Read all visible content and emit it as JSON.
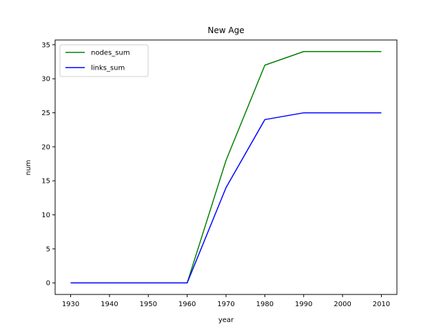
{
  "chart_data": {
    "type": "line",
    "title": "New Age",
    "xlabel": "year",
    "ylabel": "num",
    "x": [
      1930,
      1940,
      1950,
      1960,
      1970,
      1980,
      1990,
      2000,
      2010
    ],
    "xticks": [
      "1930",
      "1940",
      "1950",
      "1960",
      "1970",
      "1980",
      "1990",
      "2000",
      "2010"
    ],
    "yticks": [
      "0",
      "5",
      "10",
      "15",
      "20",
      "25",
      "30",
      "35"
    ],
    "xlim": [
      1926,
      2014
    ],
    "ylim": [
      -1.7,
      35.7
    ],
    "legend_position": "top-left",
    "grid": false,
    "series": [
      {
        "name": "nodes_sum",
        "color": "#008000",
        "values": [
          0,
          0,
          0,
          0,
          18,
          32,
          34,
          34,
          34
        ]
      },
      {
        "name": "links_sum",
        "color": "#0000ff",
        "values": [
          0,
          0,
          0,
          0,
          14,
          24,
          25,
          25,
          25
        ]
      }
    ]
  }
}
